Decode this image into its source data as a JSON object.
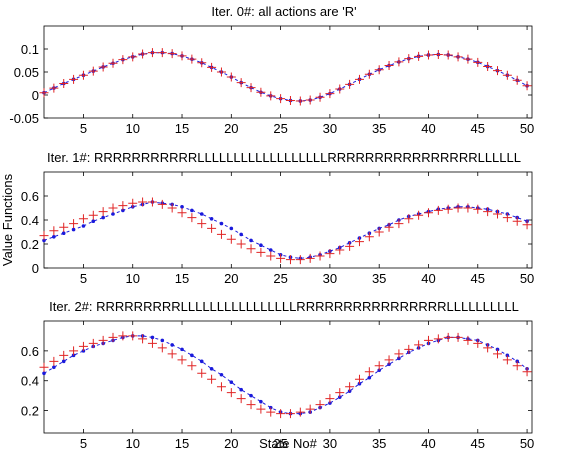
{
  "chart_data": [
    {
      "type": "line",
      "title": "Iter. 0#: all actions are 'R'",
      "xlim": [
        1,
        50.5
      ],
      "ylim": [
        -0.05,
        0.15
      ],
      "xticks": [
        5,
        10,
        15,
        20,
        25,
        30,
        35,
        40,
        45,
        50
      ],
      "yticks": [
        -0.05,
        0,
        0.05,
        0.1
      ],
      "ytick_labels": [
        "-0.05",
        "0",
        "0.05",
        "0.1"
      ],
      "series": [
        {
          "color": "#1a1adc",
          "marker": "dot",
          "line": "dashed",
          "x": [
            1,
            2,
            3,
            4,
            5,
            6,
            7,
            8,
            9,
            10,
            11,
            12,
            13,
            14,
            15,
            16,
            17,
            18,
            19,
            20,
            21,
            22,
            23,
            24,
            25,
            26,
            27,
            28,
            29,
            30,
            31,
            32,
            33,
            34,
            35,
            36,
            37,
            38,
            39,
            40,
            41,
            42,
            43,
            44,
            45,
            46,
            47,
            48,
            49,
            50
          ],
          "values": [
            0.005,
            0.015,
            0.025,
            0.034,
            0.043,
            0.052,
            0.061,
            0.069,
            0.077,
            0.083,
            0.089,
            0.092,
            0.092,
            0.09,
            0.085,
            0.078,
            0.07,
            0.06,
            0.05,
            0.039,
            0.027,
            0.016,
            0.006,
            -0.002,
            -0.008,
            -0.012,
            -0.013,
            -0.011,
            -0.005,
            0.003,
            0.013,
            0.023,
            0.034,
            0.045,
            0.055,
            0.064,
            0.072,
            0.079,
            0.084,
            0.087,
            0.088,
            0.087,
            0.083,
            0.078,
            0.071,
            0.062,
            0.053,
            0.043,
            0.032,
            0.02
          ]
        },
        {
          "color": "#e02424",
          "marker": "plus",
          "line": "none",
          "x": [
            1,
            2,
            3,
            4,
            5,
            6,
            7,
            8,
            9,
            10,
            11,
            12,
            13,
            14,
            15,
            16,
            17,
            18,
            19,
            20,
            21,
            22,
            23,
            24,
            25,
            26,
            27,
            28,
            29,
            30,
            31,
            32,
            33,
            34,
            35,
            36,
            37,
            38,
            39,
            40,
            41,
            42,
            43,
            44,
            45,
            46,
            47,
            48,
            49,
            50
          ],
          "values": [
            0.005,
            0.015,
            0.025,
            0.034,
            0.043,
            0.052,
            0.061,
            0.069,
            0.077,
            0.083,
            0.089,
            0.092,
            0.092,
            0.09,
            0.085,
            0.078,
            0.07,
            0.06,
            0.05,
            0.039,
            0.027,
            0.016,
            0.006,
            -0.002,
            -0.008,
            -0.012,
            -0.013,
            -0.011,
            -0.005,
            0.003,
            0.013,
            0.023,
            0.034,
            0.045,
            0.055,
            0.064,
            0.072,
            0.079,
            0.084,
            0.087,
            0.088,
            0.087,
            0.083,
            0.078,
            0.071,
            0.062,
            0.053,
            0.043,
            0.032,
            0.02
          ]
        }
      ]
    },
    {
      "type": "line",
      "title": "Iter. 1#: RRRRRRRRRRRLLLLLLLLLLLLLLLLLLRRRRRRRRRRRRRRRRLLLLLL",
      "ylabel": "Value Functions",
      "xlim": [
        1,
        50.5
      ],
      "ylim": [
        0,
        0.8
      ],
      "xticks": [
        5,
        10,
        15,
        20,
        25,
        30,
        35,
        40,
        45,
        50
      ],
      "yticks": [
        0,
        0.2,
        0.4,
        0.6
      ],
      "ytick_labels": [
        "0",
        "0.2",
        "0.4",
        "0.6"
      ],
      "series": [
        {
          "color": "#1a1adc",
          "marker": "dot",
          "line": "dashed",
          "x": [
            1,
            2,
            3,
            4,
            5,
            6,
            7,
            8,
            9,
            10,
            11,
            12,
            13,
            14,
            15,
            16,
            17,
            18,
            19,
            20,
            21,
            22,
            23,
            24,
            25,
            26,
            27,
            28,
            29,
            30,
            31,
            32,
            33,
            34,
            35,
            36,
            37,
            38,
            39,
            40,
            41,
            42,
            43,
            44,
            45,
            46,
            47,
            48,
            49,
            50
          ],
          "values": [
            0.23,
            0.26,
            0.29,
            0.32,
            0.35,
            0.39,
            0.42,
            0.45,
            0.48,
            0.51,
            0.53,
            0.55,
            0.54,
            0.53,
            0.51,
            0.48,
            0.45,
            0.41,
            0.37,
            0.33,
            0.28,
            0.23,
            0.19,
            0.15,
            0.11,
            0.09,
            0.08,
            0.09,
            0.11,
            0.14,
            0.17,
            0.21,
            0.25,
            0.29,
            0.33,
            0.36,
            0.4,
            0.43,
            0.45,
            0.47,
            0.49,
            0.5,
            0.51,
            0.51,
            0.5,
            0.49,
            0.47,
            0.45,
            0.42,
            0.39
          ]
        },
        {
          "color": "#e02424",
          "marker": "plus",
          "line": "none",
          "x": [
            1,
            2,
            3,
            4,
            5,
            6,
            7,
            8,
            9,
            10,
            11,
            12,
            13,
            14,
            15,
            16,
            17,
            18,
            19,
            20,
            21,
            22,
            23,
            24,
            25,
            26,
            27,
            28,
            29,
            30,
            31,
            32,
            33,
            34,
            35,
            36,
            37,
            38,
            39,
            40,
            41,
            42,
            43,
            44,
            45,
            46,
            47,
            48,
            49,
            50
          ],
          "values": [
            0.27,
            0.31,
            0.34,
            0.37,
            0.41,
            0.44,
            0.47,
            0.5,
            0.52,
            0.54,
            0.55,
            0.55,
            0.53,
            0.5,
            0.46,
            0.42,
            0.37,
            0.33,
            0.28,
            0.24,
            0.2,
            0.16,
            0.13,
            0.1,
            0.08,
            0.07,
            0.07,
            0.08,
            0.1,
            0.12,
            0.15,
            0.18,
            0.22,
            0.26,
            0.3,
            0.34,
            0.37,
            0.41,
            0.44,
            0.46,
            0.48,
            0.49,
            0.5,
            0.5,
            0.49,
            0.47,
            0.45,
            0.42,
            0.39,
            0.36
          ]
        }
      ]
    },
    {
      "type": "line",
      "title": "Iter. 2#: RRRRRRRRRLLLLLLLLLLLLLLLLRRRRRRRRRRRRRRRRLLLLLLLLLL",
      "xlabel": "State No#",
      "xlim": [
        1,
        50.5
      ],
      "ylim": [
        0.05,
        0.8
      ],
      "xticks": [
        5,
        10,
        15,
        20,
        25,
        30,
        35,
        40,
        45,
        50
      ],
      "yticks": [
        0.2,
        0.4,
        0.6
      ],
      "ytick_labels": [
        "0.2",
        "0.4",
        "0.6"
      ],
      "series": [
        {
          "color": "#1a1adc",
          "marker": "dot",
          "line": "dashed",
          "x": [
            1,
            2,
            3,
            4,
            5,
            6,
            7,
            8,
            9,
            10,
            11,
            12,
            13,
            14,
            15,
            16,
            17,
            18,
            19,
            20,
            21,
            22,
            23,
            24,
            25,
            26,
            27,
            28,
            29,
            30,
            31,
            32,
            33,
            34,
            35,
            36,
            37,
            38,
            39,
            40,
            41,
            42,
            43,
            44,
            45,
            46,
            47,
            48,
            49,
            50
          ],
          "values": [
            0.45,
            0.49,
            0.53,
            0.57,
            0.6,
            0.63,
            0.65,
            0.67,
            0.69,
            0.7,
            0.7,
            0.69,
            0.67,
            0.64,
            0.61,
            0.57,
            0.53,
            0.48,
            0.44,
            0.39,
            0.34,
            0.3,
            0.26,
            0.22,
            0.19,
            0.18,
            0.18,
            0.19,
            0.22,
            0.25,
            0.29,
            0.33,
            0.38,
            0.42,
            0.47,
            0.51,
            0.55,
            0.59,
            0.62,
            0.65,
            0.67,
            0.69,
            0.69,
            0.68,
            0.67,
            0.64,
            0.61,
            0.57,
            0.53,
            0.48
          ]
        },
        {
          "color": "#e02424",
          "marker": "plus",
          "line": "none",
          "x": [
            1,
            2,
            3,
            4,
            5,
            6,
            7,
            8,
            9,
            10,
            11,
            12,
            13,
            14,
            15,
            16,
            17,
            18,
            19,
            20,
            21,
            22,
            23,
            24,
            25,
            26,
            27,
            28,
            29,
            30,
            31,
            32,
            33,
            34,
            35,
            36,
            37,
            38,
            39,
            40,
            41,
            42,
            43,
            44,
            45,
            46,
            47,
            48,
            49,
            50
          ],
          "values": [
            0.49,
            0.53,
            0.57,
            0.6,
            0.63,
            0.65,
            0.67,
            0.69,
            0.7,
            0.7,
            0.68,
            0.65,
            0.62,
            0.58,
            0.54,
            0.5,
            0.45,
            0.41,
            0.36,
            0.32,
            0.28,
            0.24,
            0.21,
            0.19,
            0.18,
            0.18,
            0.19,
            0.21,
            0.24,
            0.28,
            0.32,
            0.36,
            0.41,
            0.46,
            0.5,
            0.54,
            0.58,
            0.61,
            0.64,
            0.67,
            0.68,
            0.69,
            0.69,
            0.67,
            0.65,
            0.62,
            0.58,
            0.54,
            0.5,
            0.46
          ]
        }
      ]
    }
  ]
}
